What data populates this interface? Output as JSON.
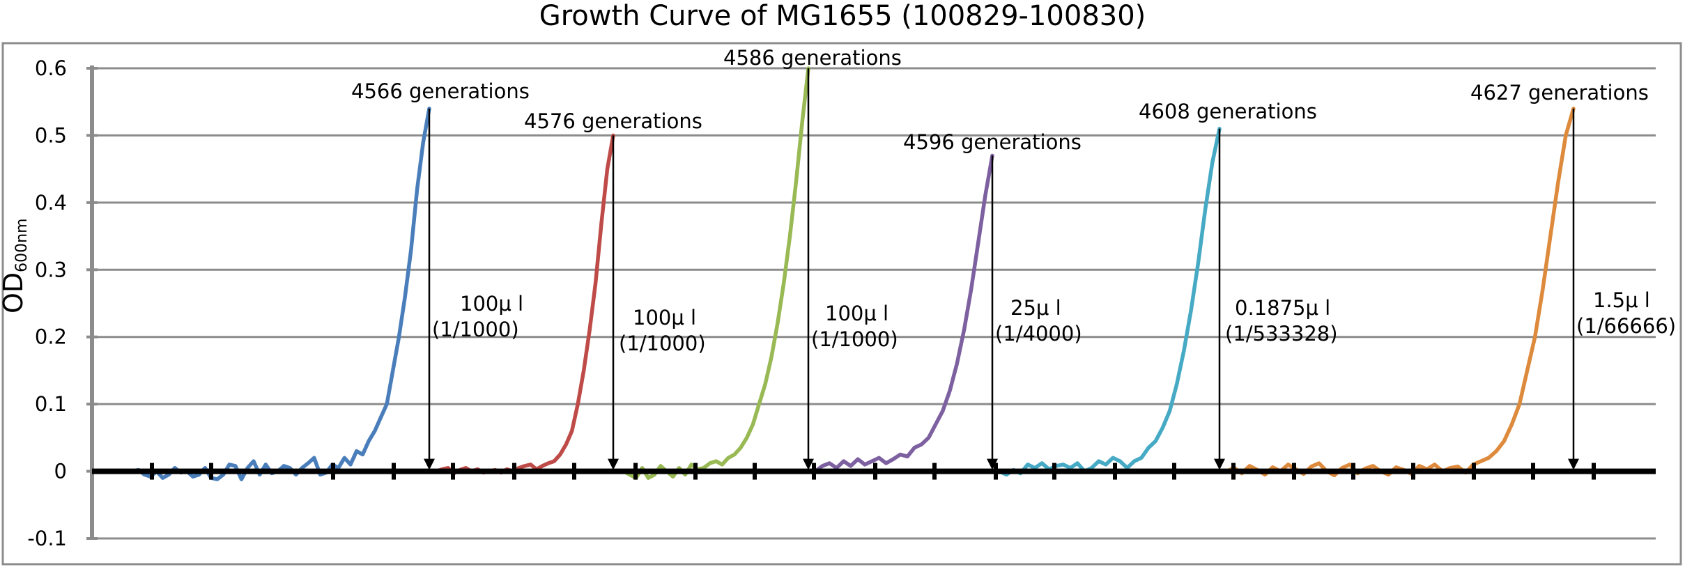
{
  "chart_data": {
    "type": "line",
    "title": "Growth Curve of MG1655 (100829-100830)",
    "ylabel_main": "OD",
    "ylabel_sub": "600nm",
    "ylim": [
      -0.1,
      0.6
    ],
    "yticks": [
      -0.1,
      0,
      0.1,
      0.2,
      0.3,
      0.4,
      0.5,
      0.6
    ],
    "ytick_labels": [
      "-0.1",
      "0",
      "0.1",
      "0.2",
      "0.3",
      "0.4",
      "0.5",
      "0.6"
    ],
    "grid": true,
    "legend": "none",
    "series": [
      {
        "color": "#4a7ebb",
        "annotation": "4566 generations",
        "transfer_volume": "100μ l",
        "transfer_dilution": "(1/1000)",
        "peak_od": 0.54,
        "values": [
          0.0,
          0.002,
          -0.005,
          -0.008,
          0.0,
          -0.01,
          -0.005,
          0.005,
          -0.002,
          0.0,
          -0.008,
          -0.005,
          0.005,
          -0.01,
          -0.012,
          -0.005,
          0.01,
          0.008,
          -0.012,
          0.005,
          0.015,
          -0.005,
          0.01,
          -0.003,
          0.0,
          0.008,
          0.005,
          -0.005,
          0.005,
          0.012,
          0.02,
          -0.005,
          -0.002,
          0.01,
          0.005,
          0.02,
          0.01,
          0.03,
          0.025,
          0.045,
          0.06,
          0.08,
          0.1,
          0.15,
          0.2,
          0.26,
          0.33,
          0.42,
          0.49,
          0.54
        ]
      },
      {
        "color": "#be4b48",
        "annotation": "4576 generations",
        "transfer_volume": "100μ l",
        "transfer_dilution": "(1/1000)",
        "peak_od": 0.5,
        "values": [
          0.0,
          0.003,
          0.005,
          -0.003,
          0.002,
          0.005,
          0.0,
          0.003,
          -0.002,
          0.0,
          0.002,
          -0.002,
          0.003,
          0.0,
          0.005,
          0.008,
          0.01,
          0.003,
          0.008,
          0.012,
          0.015,
          0.025,
          0.04,
          0.06,
          0.1,
          0.15,
          0.21,
          0.28,
          0.37,
          0.45,
          0.5
        ]
      },
      {
        "color": "#98b954",
        "annotation": "4586 generations",
        "transfer_volume": "100μ l",
        "transfer_dilution": "(1/1000)",
        "peak_od": 0.6,
        "values": [
          0.0,
          -0.005,
          -0.01,
          0.005,
          -0.01,
          -0.005,
          0.008,
          0.0,
          -0.008,
          0.005,
          -0.005,
          0.01,
          0.003,
          0.005,
          0.012,
          0.015,
          0.01,
          0.02,
          0.025,
          0.035,
          0.05,
          0.07,
          0.1,
          0.13,
          0.17,
          0.22,
          0.28,
          0.35,
          0.43,
          0.52,
          0.6
        ]
      },
      {
        "color": "#7d60a0",
        "annotation": "4596 generations",
        "transfer_volume": "25μ l",
        "transfer_dilution": "(1/4000)",
        "peak_od": 0.47,
        "values": [
          0.0,
          0.008,
          0.012,
          0.005,
          0.015,
          0.008,
          0.018,
          0.01,
          0.015,
          0.02,
          0.012,
          0.018,
          0.025,
          0.022,
          0.035,
          0.04,
          0.05,
          0.07,
          0.09,
          0.12,
          0.16,
          0.21,
          0.27,
          0.34,
          0.41,
          0.47
        ]
      },
      {
        "color": "#46aac5",
        "annotation": "4608 generations",
        "transfer_volume": "0.1875μ l",
        "transfer_dilution": "(1/533328)",
        "peak_od": 0.51,
        "values": [
          0.0,
          -0.005,
          0.002,
          -0.003,
          0.01,
          0.005,
          0.012,
          0.003,
          0.008,
          0.01,
          0.005,
          0.012,
          0.0,
          0.005,
          0.015,
          0.01,
          0.02,
          0.015,
          0.005,
          0.015,
          0.02,
          0.035,
          0.045,
          0.065,
          0.09,
          0.13,
          0.18,
          0.24,
          0.31,
          0.39,
          0.46,
          0.51
        ]
      },
      {
        "color": "#dd8a3d",
        "annotation": "4627 generations",
        "transfer_volume": "1.5μ l",
        "transfer_dilution": "(1/66666)",
        "peak_od": 0.54,
        "values": [
          0.0,
          0.005,
          -0.003,
          0.008,
          0.002,
          -0.005,
          0.006,
          0.0,
          0.01,
          0.003,
          -0.004,
          0.007,
          0.012,
          0.0,
          -0.006,
          0.005,
          0.01,
          -0.003,
          0.004,
          0.008,
          0.0,
          -0.005,
          0.006,
          0.002,
          -0.004,
          0.008,
          0.003,
          0.01,
          0.0,
          0.005,
          0.007,
          -0.002,
          0.01,
          0.015,
          0.02,
          0.03,
          0.045,
          0.07,
          0.1,
          0.15,
          0.2,
          0.27,
          0.35,
          0.43,
          0.5,
          0.54
        ]
      }
    ]
  },
  "colors": {
    "grid": "#8c8c8c",
    "axis": "#000000",
    "plot_border": "#8c8c8c"
  }
}
